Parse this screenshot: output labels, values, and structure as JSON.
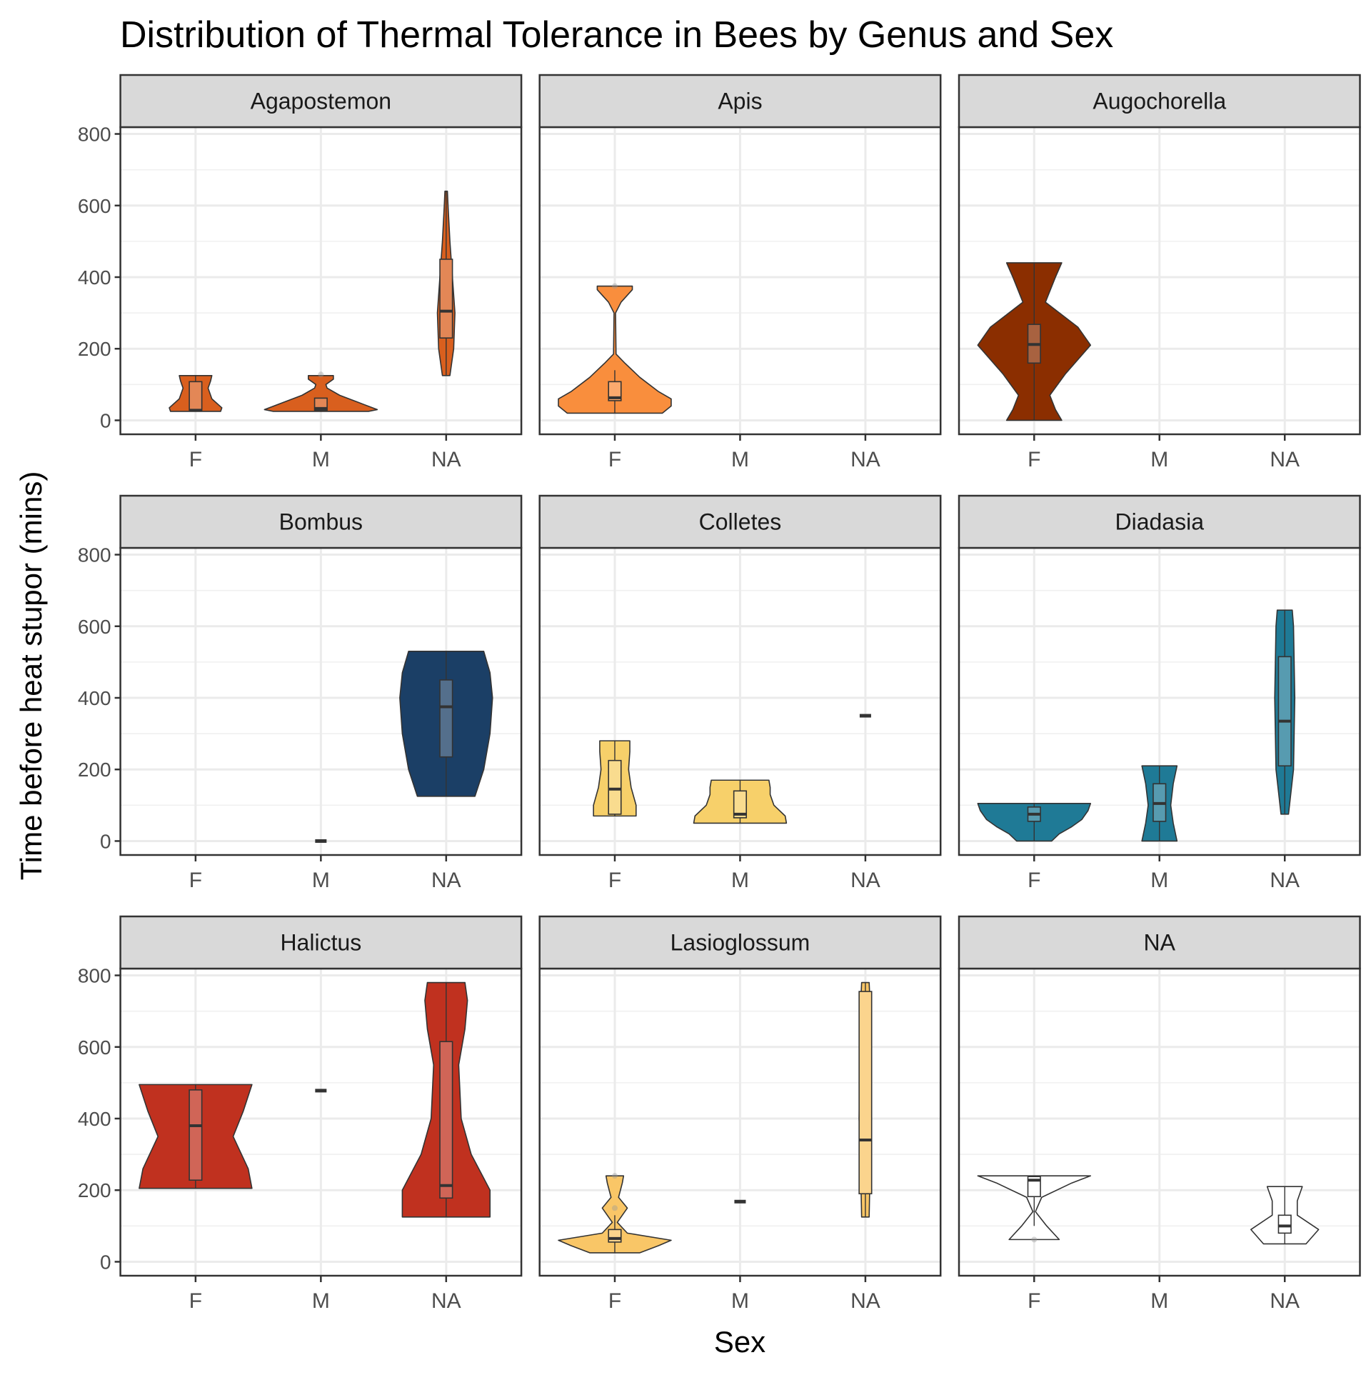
{
  "chart_data": {
    "type": "violin",
    "title": "Distribution of Thermal Tolerance in Bees by Genus and Sex",
    "xlabel": "Sex",
    "ylabel": "Time before heat stupor (mins)",
    "categories": [
      "F",
      "M",
      "NA"
    ],
    "yticks": [
      0,
      200,
      400,
      600,
      800
    ],
    "ylim": [
      -39,
      819
    ],
    "grid": true,
    "panels": [
      {
        "genus": "Agapostemon",
        "color": "#D95F1E",
        "violins": [
          {
            "sex": "F",
            "profile": [
              [
                25,
                0.2
              ],
              [
                35,
                0.21
              ],
              [
                60,
                0.13
              ],
              [
                90,
                0.1
              ],
              [
                110,
                0.12
              ],
              [
                125,
                0.13
              ]
            ],
            "box": [
              28,
              28,
              108
            ],
            "whisker": [
              25,
              125
            ]
          },
          {
            "sex": "M",
            "profile": [
              [
                25,
                0.38
              ],
              [
                30,
                0.45
              ],
              [
                50,
                0.3
              ],
              [
                70,
                0.15
              ],
              [
                90,
                0.05
              ],
              [
                100,
                0.04
              ],
              [
                115,
                0.1
              ],
              [
                125,
                0.1
              ]
            ],
            "box": [
              28,
              33,
              62
            ],
            "whisker": [
              25,
              62
            ],
            "outliers": [
              128
            ]
          },
          {
            "sex": "NA",
            "profile": [
              [
                125,
                0.03
              ],
              [
                200,
                0.06
              ],
              [
                300,
                0.07
              ],
              [
                400,
                0.05
              ],
              [
                500,
                0.03
              ],
              [
                600,
                0.015
              ],
              [
                640,
                0.01
              ]
            ],
            "box": [
              230,
              305,
              450
            ],
            "whisker": [
              125,
              640
            ]
          }
        ]
      },
      {
        "genus": "Apis",
        "color": "#F98E3D",
        "violins": [
          {
            "sex": "F",
            "profile": [
              [
                20,
                0.38
              ],
              [
                40,
                0.45
              ],
              [
                60,
                0.45
              ],
              [
                80,
                0.35
              ],
              [
                120,
                0.2
              ],
              [
                160,
                0.08
              ],
              [
                185,
                0.01
              ],
              [
                300,
                0.006
              ],
              [
                330,
                0.05
              ],
              [
                365,
                0.14
              ],
              [
                375,
                0.14
              ]
            ],
            "box": [
              55,
              63,
              108
            ],
            "whisker": [
              20,
              140
            ],
            "outliers": [
              375
            ]
          }
        ]
      },
      {
        "genus": "Augochorella",
        "color": "#8B2E00",
        "violins": [
          {
            "sex": "F",
            "profile": [
              [
                0,
                0.22
              ],
              [
                30,
                0.17
              ],
              [
                70,
                0.125
              ],
              [
                130,
                0.25
              ],
              [
                210,
                0.45
              ],
              [
                260,
                0.35
              ],
              [
                330,
                0.09
              ],
              [
                400,
                0.17
              ],
              [
                440,
                0.22
              ]
            ],
            "box": [
              160,
              212,
              268
            ],
            "whisker": [
              0,
              440
            ]
          }
        ]
      },
      {
        "genus": "Bombus",
        "color": "#1B3F66",
        "violins": [
          {
            "sex": "M",
            "single": 0
          },
          {
            "sex": "NA",
            "profile": [
              [
                125,
                0.23
              ],
              [
                200,
                0.3
              ],
              [
                300,
                0.35
              ],
              [
                400,
                0.37
              ],
              [
                470,
                0.35
              ],
              [
                530,
                0.3
              ]
            ],
            "box": [
              235,
              375,
              450
            ],
            "whisker": [
              125,
              530
            ]
          }
        ]
      },
      {
        "genus": "Colletes",
        "color": "#F7D06A",
        "violins": [
          {
            "sex": "F",
            "profile": [
              [
                70,
                0.17
              ],
              [
                100,
                0.17
              ],
              [
                150,
                0.13
              ],
              [
                200,
                0.11
              ],
              [
                250,
                0.12
              ],
              [
                280,
                0.12
              ]
            ],
            "box": [
              75,
              145,
              225
            ],
            "whisker": [
              70,
              280
            ]
          },
          {
            "sex": "M",
            "profile": [
              [
                50,
                0.37
              ],
              [
                70,
                0.36
              ],
              [
                100,
                0.27
              ],
              [
                130,
                0.24
              ],
              [
                150,
                0.24
              ],
              [
                170,
                0.23
              ]
            ],
            "box": [
              65,
              75,
              140
            ],
            "whisker": [
              50,
              170
            ]
          },
          {
            "sex": "NA",
            "single": 350
          }
        ]
      },
      {
        "genus": "Diadasia",
        "color": "#1F7A96",
        "violins": [
          {
            "sex": "F",
            "profile": [
              [
                0,
                0.14
              ],
              [
                20,
                0.2
              ],
              [
                40,
                0.3
              ],
              [
                60,
                0.38
              ],
              [
                85,
                0.43
              ],
              [
                105,
                0.45
              ]
            ],
            "box": [
              55,
              75,
              95
            ],
            "whisker": [
              0,
              105
            ]
          },
          {
            "sex": "M",
            "profile": [
              [
                0,
                0.14
              ],
              [
                50,
                0.11
              ],
              [
                100,
                0.09
              ],
              [
                160,
                0.11
              ],
              [
                210,
                0.14
              ]
            ],
            "box": [
              55,
              105,
              160
            ],
            "whisker": [
              0,
              210
            ]
          },
          {
            "sex": "NA",
            "profile": [
              [
                75,
                0.03
              ],
              [
                200,
                0.07
              ],
              [
                400,
                0.08
              ],
              [
                600,
                0.07
              ],
              [
                645,
                0.06
              ]
            ],
            "box": [
              210,
              335,
              515
            ],
            "whisker": [
              75,
              645
            ]
          }
        ]
      },
      {
        "genus": "Halictus",
        "color": "#C0311F",
        "violins": [
          {
            "sex": "F",
            "profile": [
              [
                205,
                0.45
              ],
              [
                260,
                0.42
              ],
              [
                350,
                0.3
              ],
              [
                420,
                0.38
              ],
              [
                495,
                0.45
              ]
            ],
            "box": [
              228,
              380,
              480
            ],
            "whisker": [
              205,
              495
            ]
          },
          {
            "sex": "M",
            "single": 478
          },
          {
            "sex": "NA",
            "profile": [
              [
                125,
                0.35
              ],
              [
                200,
                0.35
              ],
              [
                300,
                0.2
              ],
              [
                400,
                0.12
              ],
              [
                550,
                0.1
              ],
              [
                650,
                0.15
              ],
              [
                730,
                0.17
              ],
              [
                780,
                0.15
              ]
            ],
            "box": [
              178,
              213,
              615
            ],
            "whisker": [
              125,
              780
            ]
          }
        ]
      },
      {
        "genus": "Lasioglossum",
        "color": "#F9C667",
        "violins": [
          {
            "sex": "F",
            "profile": [
              [
                25,
                0.2
              ],
              [
                45,
                0.35
              ],
              [
                60,
                0.45
              ],
              [
                80,
                0.1
              ],
              [
                110,
                0.02
              ],
              [
                150,
                0.1
              ],
              [
                180,
                0.03
              ],
              [
                220,
                0.06
              ],
              [
                240,
                0.07
              ]
            ],
            "box": [
              55,
              65,
              90
            ],
            "whisker": [
              25,
              130
            ],
            "outliers": [
              150,
              240
            ]
          },
          {
            "sex": "M",
            "single": 168
          },
          {
            "sex": "NA",
            "profile": [
              [
                125,
                0.03
              ],
              [
                300,
                0.04
              ],
              [
                400,
                0.05
              ],
              [
                700,
                0.04
              ],
              [
                780,
                0.03
              ]
            ],
            "box": [
              190,
              340,
              755
            ],
            "whisker": [
              125,
              780
            ]
          }
        ]
      },
      {
        "genus": "NA",
        "color": "#FFFFFF",
        "violins": [
          {
            "sex": "F",
            "profile": [
              [
                62,
                0.2
              ],
              [
                100,
                0.1
              ],
              [
                140,
                0.01
              ],
              [
                180,
                0.06
              ],
              [
                220,
                0.3
              ],
              [
                240,
                0.45
              ]
            ],
            "box": [
              182,
              228,
              238
            ],
            "whisker": [
              100,
              240
            ],
            "outliers": [
              62
            ]
          },
          {
            "sex": "NA",
            "profile": [
              [
                50,
                0.17
              ],
              [
                90,
                0.27
              ],
              [
                130,
                0.1
              ],
              [
                170,
                0.1
              ],
              [
                210,
                0.14
              ]
            ],
            "box": [
              80,
              100,
              130
            ],
            "whisker": [
              50,
              210
            ]
          }
        ]
      }
    ]
  }
}
